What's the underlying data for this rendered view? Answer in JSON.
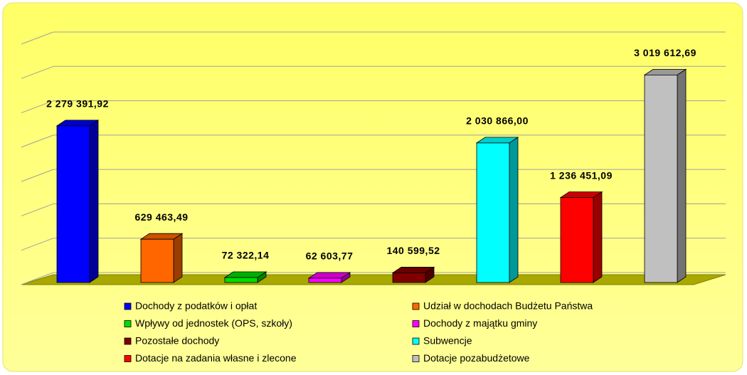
{
  "chart_data": {
    "type": "bar3d",
    "series": [
      {
        "name": "Dochody z podatków i opłat",
        "color": "#0000ff",
        "values": [
          2279391.92
        ],
        "value_labels": [
          "2 279 391,92"
        ]
      },
      {
        "name": "Udział w dochodach Budżetu Państwa",
        "color": "#ff6600",
        "values": [
          629463.49
        ],
        "value_labels": [
          "629 463,49"
        ]
      },
      {
        "name": "Wpływy od jednostek (OPS, szkoły)",
        "color": "#00dd00",
        "values": [
          72322.14
        ],
        "value_labels": [
          "72 322,14"
        ]
      },
      {
        "name": "Dochody z majątku gminy",
        "color": "#ff00ff",
        "values": [
          62603.77
        ],
        "value_labels": [
          "62 603,77"
        ]
      },
      {
        "name": "Pozostałe dochody",
        "color": "#800000",
        "values": [
          140599.52
        ],
        "value_labels": [
          "140 599,52"
        ]
      },
      {
        "name": "Subwencje",
        "color": "#00ffff",
        "values": [
          2030866.0
        ],
        "value_labels": [
          "2 030 866,00"
        ]
      },
      {
        "name": "Dotacje na zadania własne i zlecone",
        "color": "#ff0000",
        "values": [
          1236451.09
        ],
        "value_labels": [
          "1 236 451,09"
        ]
      },
      {
        "name": "Dotacje pozabudżetowe",
        "color": "#c0c0c0",
        "values": [
          3019612.69
        ],
        "value_labels": [
          "3 019 612,69"
        ]
      }
    ],
    "ylim": [
      0,
      3500000
    ],
    "yticks": [
      0,
      500000,
      1000000,
      1500000,
      2000000,
      2500000,
      3000000,
      3500000
    ],
    "grid": true
  }
}
